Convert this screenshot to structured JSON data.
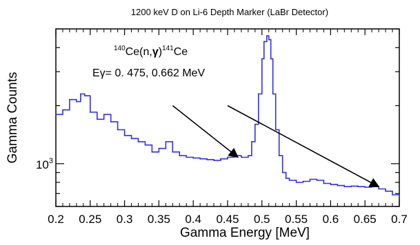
{
  "chart_data": {
    "type": "line",
    "title": "1200 keV D on Li-6 Depth Marker (LaBr Detector)",
    "xlabel": "Gamma Energy [MeV]",
    "ylabel": "Gamma Counts",
    "xlim": [
      0.2,
      0.7
    ],
    "y_scale": "log",
    "ylim": [
      600,
      5000
    ],
    "x_ticks": [
      "0.2",
      "0.25",
      "0.3",
      "0.35",
      "0.4",
      "0.45",
      "0.5",
      "0.55",
      "0.6",
      "0.65",
      "0.7"
    ],
    "y_ticks": [
      {
        "value": 1000,
        "label": "10",
        "exponent": "3"
      }
    ],
    "grid": false,
    "line_color": "#2f2fe6",
    "series": [
      {
        "x": [
          0.2,
          0.21,
          0.22,
          0.23,
          0.236,
          0.242,
          0.25,
          0.26,
          0.27,
          0.28,
          0.29,
          0.3,
          0.31,
          0.32,
          0.33,
          0.34,
          0.35,
          0.36,
          0.37,
          0.38,
          0.39,
          0.4,
          0.41,
          0.42,
          0.43,
          0.44,
          0.45,
          0.46,
          0.47,
          0.48,
          0.485,
          0.49,
          0.495,
          0.5,
          0.503,
          0.507,
          0.51,
          0.513,
          0.516,
          0.52,
          0.525,
          0.53,
          0.535,
          0.54,
          0.55,
          0.56,
          0.57,
          0.58,
          0.59,
          0.6,
          0.61,
          0.62,
          0.63,
          0.64,
          0.65,
          0.66,
          0.67,
          0.68,
          0.69,
          0.7
        ],
        "y": [
          1800,
          1900,
          2150,
          2100,
          2300,
          2250,
          1850,
          1700,
          1800,
          1650,
          1500,
          1400,
          1350,
          1300,
          1250,
          1150,
          1200,
          1300,
          1150,
          1100,
          1080,
          1070,
          1060,
          1050,
          1040,
          1060,
          1080,
          1100,
          1080,
          1100,
          1300,
          1600,
          2300,
          3500,
          4300,
          4600,
          4400,
          3500,
          2300,
          1500,
          1100,
          900,
          840,
          820,
          800,
          810,
          830,
          820,
          790,
          780,
          770,
          760,
          765,
          760,
          755,
          760,
          740,
          720,
          690,
          670
        ]
      }
    ],
    "annotations": [
      {
        "lines": [
          [
            {
              "text": "140",
              "sup": true
            },
            {
              "text": "Ce(n,",
              "sup": false
            },
            {
              "text": "γ",
              "sup": false,
              "bold": true
            },
            {
              "text": ")",
              "sup": false
            },
            {
              "text": "141",
              "sup": true
            },
            {
              "text": "Ce",
              "sup": false
            }
          ],
          [
            {
              "text": "Eγ=  0. 475, 0.662 MeV",
              "sup": false
            }
          ]
        ],
        "arrows": [
          {
            "from": [
              0.37,
              2000
            ],
            "to": [
              0.465,
              1080
            ]
          },
          {
            "from": [
              0.45,
              2000
            ],
            "to": [
              0.67,
              760
            ]
          }
        ]
      }
    ]
  }
}
